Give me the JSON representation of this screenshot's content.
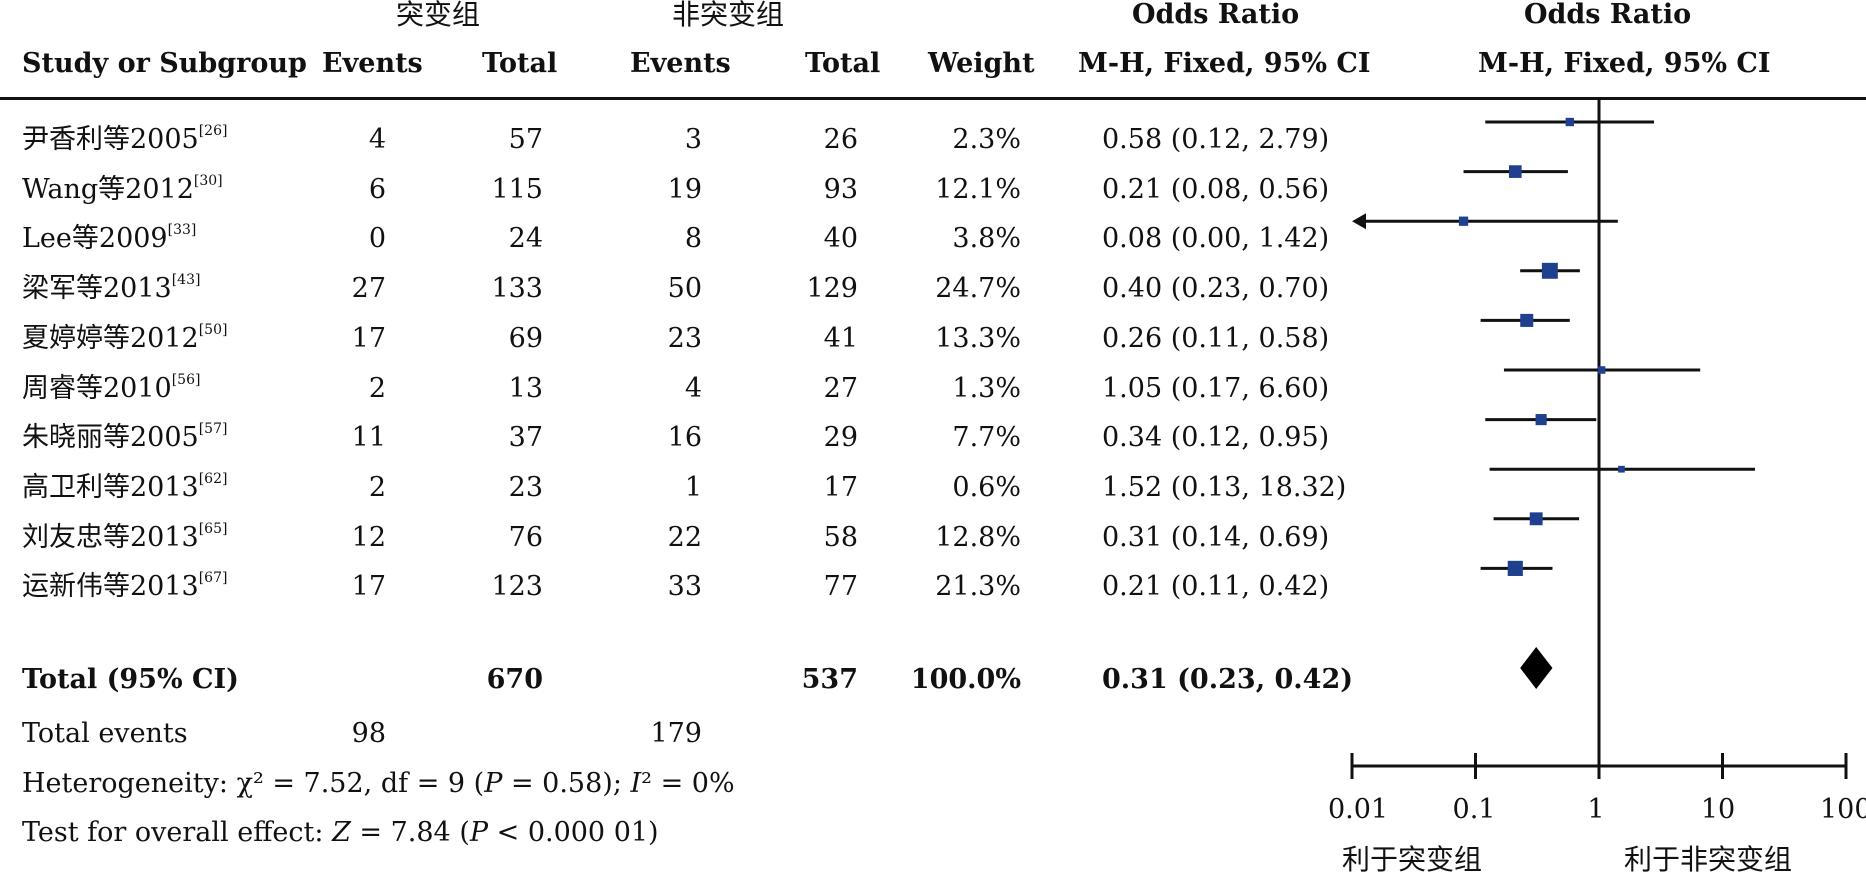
{
  "header": {
    "group1": "突变组",
    "group2": "非突变组",
    "or_title": "Odds Ratio",
    "or_method": "M-H, Fixed, 95% CI",
    "plot_title": "Odds Ratio",
    "plot_method": "M-H, Fixed, 95% CI",
    "col_study": "Study or Subgroup",
    "col_events1": "Events",
    "col_total1": "Total",
    "col_events2": "Events",
    "col_total2": "Total",
    "col_weight": "Weight"
  },
  "studies": [
    {
      "name": "尹香利等2005",
      "ref": "[26]",
      "e1": "4",
      "t1": "57",
      "e2": "3",
      "t2": "26",
      "weight": "2.3%",
      "ci": "0.58 (0.12, 2.79)"
    },
    {
      "name": "Wang等2012",
      "ref": "[30]",
      "e1": "6",
      "t1": "115",
      "e2": "19",
      "t2": "93",
      "weight": "12.1%",
      "ci": "0.21 (0.08, 0.56)"
    },
    {
      "name": "Lee等2009",
      "ref": "[33]",
      "e1": "0",
      "t1": "24",
      "e2": "8",
      "t2": "40",
      "weight": "3.8%",
      "ci": "0.08 (0.00, 1.42)"
    },
    {
      "name": "梁军等2013",
      "ref": "[43]",
      "e1": "27",
      "t1": "133",
      "e2": "50",
      "t2": "129",
      "weight": "24.7%",
      "ci": "0.40 (0.23, 0.70)"
    },
    {
      "name": "夏婷婷等2012",
      "ref": "[50]",
      "e1": "17",
      "t1": "69",
      "e2": "23",
      "t2": "41",
      "weight": "13.3%",
      "ci": "0.26 (0.11, 0.58)"
    },
    {
      "name": "周睿等2010",
      "ref": "[56]",
      "e1": "2",
      "t1": "13",
      "e2": "4",
      "t2": "27",
      "weight": "1.3%",
      "ci": "1.05 (0.17, 6.60)"
    },
    {
      "name": "朱晓丽等2005",
      "ref": "[57]",
      "e1": "11",
      "t1": "37",
      "e2": "16",
      "t2": "29",
      "weight": "7.7%",
      "ci": "0.34 (0.12, 0.95)"
    },
    {
      "name": "高卫利等2013",
      "ref": "[62]",
      "e1": "2",
      "t1": "23",
      "e2": "1",
      "t2": "17",
      "weight": "0.6%",
      "ci": "1.52 (0.13, 18.32)"
    },
    {
      "name": "刘友忠等2013",
      "ref": "[65]",
      "e1": "12",
      "t1": "76",
      "e2": "22",
      "t2": "58",
      "weight": "12.8%",
      "ci": "0.31 (0.14, 0.69)"
    },
    {
      "name": "运新伟等2013",
      "ref": "[67]",
      "e1": "17",
      "t1": "123",
      "e2": "33",
      "t2": "77",
      "weight": "21.3%",
      "ci": "0.21 (0.11, 0.42)"
    }
  ],
  "total": {
    "label": "Total (95% CI)",
    "t1": "670",
    "t2": "537",
    "weight": "100.0%",
    "ci": "0.31 (0.23, 0.42)"
  },
  "total_events": {
    "label": "Total events",
    "e1": "98",
    "e2": "179"
  },
  "heterogeneity": {
    "label": "Heterogeneity:",
    "chi": "χ² = 7.52, df = 9 (",
    "p_letter": "P",
    "p_rest": " = 0.58); ",
    "i_letter": "I",
    "i_rest": "² = 0%"
  },
  "overall": {
    "label": "Test for overall effect: ",
    "z_letter": "Z",
    "z_rest": " = 7.84 (",
    "p_letter": "P",
    "p_rest": " < 0.000 01)"
  },
  "axis": {
    "ticks": [
      "0.01",
      "0.1",
      "1",
      "10",
      "100"
    ],
    "favours_left": "利于突变组",
    "favours_right": "利于非突变组"
  },
  "chart_data": {
    "type": "forest",
    "scale": "log",
    "xlim": [
      0.01,
      100
    ],
    "ticks": [
      0.01,
      0.1,
      1,
      10,
      100
    ],
    "categories": [
      "尹香利等2005",
      "Wang等2012",
      "Lee等2009",
      "梁军等2013",
      "夏婷婷等2012",
      "周睿等2010",
      "朱晓丽等2005",
      "高卫利等2013",
      "刘友忠等2013",
      "运新伟等2013"
    ],
    "or": [
      0.58,
      0.21,
      0.08,
      0.4,
      0.26,
      1.05,
      0.34,
      1.52,
      0.31,
      0.21
    ],
    "lower": [
      0.12,
      0.08,
      0.0,
      0.23,
      0.11,
      0.17,
      0.12,
      0.13,
      0.14,
      0.11
    ],
    "upper": [
      2.79,
      0.56,
      1.42,
      0.7,
      0.58,
      6.6,
      0.95,
      18.32,
      0.69,
      0.42
    ],
    "weight": [
      2.3,
      12.1,
      3.8,
      24.7,
      13.3,
      1.3,
      7.7,
      0.6,
      12.8,
      21.3
    ],
    "pooled": {
      "or": 0.31,
      "lower": 0.23,
      "upper": 0.42
    },
    "colors": {
      "marker": "#1f3f8f",
      "line": "#111111"
    }
  }
}
